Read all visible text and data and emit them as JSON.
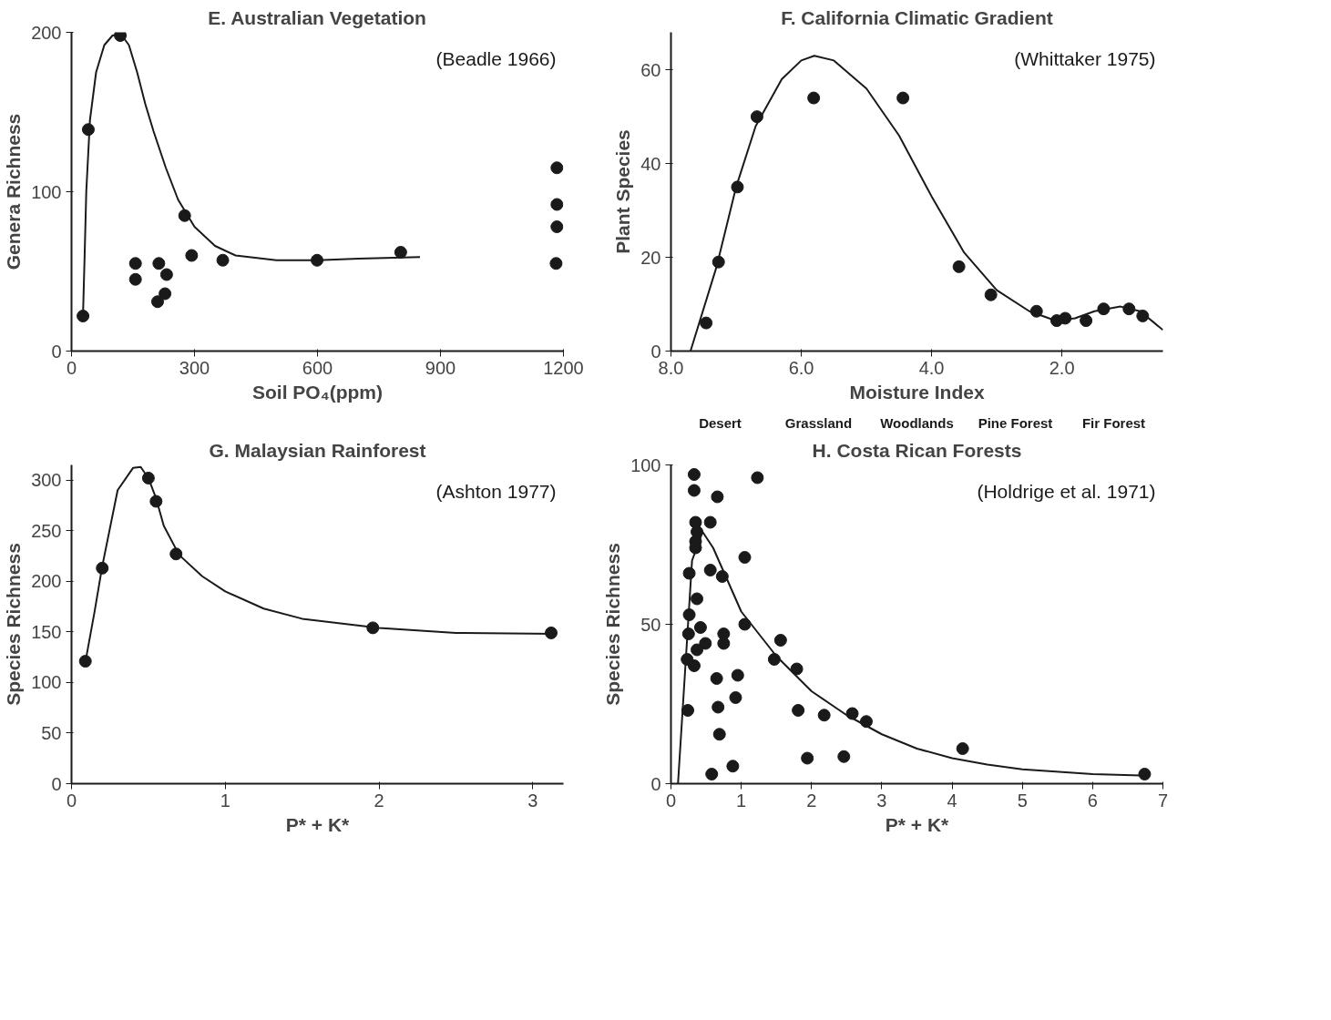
{
  "chart_data": [
    {
      "type": "scatter",
      "title": "E. Australian Vegetation",
      "xlabel": "Soil PO₄(ppm)",
      "ylabel": "Genera Richness",
      "annotations": [
        "(Beadle 1966)"
      ],
      "xlim": [
        0,
        1200
      ],
      "ylim": [
        0,
        200
      ],
      "xticks": [
        0,
        300,
        600,
        900,
        1200
      ],
      "yticks": [
        0,
        100,
        200
      ],
      "series": [
        {
          "marker": "circle",
          "color": "#1a1a1a",
          "x": [
            28,
            41,
            119,
            156,
            156,
            213,
            232,
            210,
            228,
            276,
            293,
            369,
            599,
            803,
            1184,
            1184,
            1184,
            1182
          ],
          "values": [
            22,
            139,
            198,
            55,
            45,
            55,
            48,
            31,
            36,
            85,
            60,
            57,
            57,
            62,
            115,
            92,
            78,
            55
          ]
        },
        {
          "type": "line",
          "color": "#1a1a1a",
          "x": [
            28,
            32,
            36,
            45,
            60,
            80,
            100,
            120,
            140,
            160,
            180,
            200,
            230,
            260,
            300,
            350,
            400,
            500,
            600,
            700,
            850
          ],
          "values": [
            22,
            60,
            100,
            145,
            175,
            192,
            198,
            199,
            192,
            175,
            155,
            138,
            115,
            95,
            78,
            66,
            60,
            57,
            57,
            58,
            59
          ]
        }
      ]
    },
    {
      "type": "scatter",
      "title": "F. California Climatic Gradient",
      "xlabel": "Moisture Index",
      "ylabel": "Plant Species",
      "annotations": [
        "(Whittaker 1975)",
        "Desert",
        "Grassland",
        "Woodlands",
        "Pine Forest",
        "Fir Forest"
      ],
      "xlim": [
        8.0,
        0.45
      ],
      "ylim": [
        0,
        68
      ],
      "xticks": [
        {
          "value": 8,
          "label": "8.0"
        },
        {
          "value": 6,
          "label": "6.0"
        },
        {
          "value": 4,
          "label": "4.0"
        },
        {
          "value": 2,
          "label": "2.0"
        }
      ],
      "yticks": [
        0,
        20,
        40,
        60
      ],
      "series": [
        {
          "marker": "circle",
          "color": "#1a1a1a",
          "x": [
            7.46,
            7.27,
            6.98,
            6.68,
            5.81,
            4.44,
            3.58,
            3.09,
            2.39,
            2.08,
            1.95,
            1.63,
            1.36,
            0.97,
            0.76
          ],
          "values": [
            6,
            19,
            35,
            50,
            54,
            54,
            18,
            12,
            8.5,
            6.5,
            7,
            6.5,
            9,
            9,
            7.5
          ]
        },
        {
          "type": "line",
          "color": "#1a1a1a",
          "x": [
            7.7,
            7.3,
            7.0,
            6.7,
            6.3,
            6.0,
            5.8,
            5.5,
            5.0,
            4.5,
            4.0,
            3.5,
            3.0,
            2.5,
            2.1,
            1.8,
            1.5,
            1.1,
            0.8,
            0.45
          ],
          "values": [
            0,
            18,
            35,
            48,
            58,
            62,
            63,
            62,
            56,
            46,
            33,
            21,
            13,
            8.5,
            6.5,
            7,
            8.5,
            9.5,
            8.5,
            4.5
          ]
        }
      ]
    },
    {
      "type": "scatter",
      "title": "G. Malaysian Rainforest",
      "xlabel": "P* + K*",
      "ylabel": "Species Richness",
      "annotations": [
        "(Ashton 1977)"
      ],
      "xlim": [
        0,
        3.2
      ],
      "ylim": [
        0,
        315
      ],
      "xticks": [
        0,
        1,
        2,
        3
      ],
      "yticks": [
        0,
        50,
        100,
        150,
        200,
        250,
        300
      ],
      "series": [
        {
          "marker": "circle",
          "color": "#1a1a1a",
          "x": [
            0.09,
            0.2,
            0.5,
            0.55,
            0.68,
            1.96,
            3.12
          ],
          "values": [
            121,
            213,
            302,
            279,
            227,
            154,
            149
          ]
        },
        {
          "type": "line",
          "color": "#1a1a1a",
          "x": [
            0.09,
            0.15,
            0.2,
            0.3,
            0.4,
            0.45,
            0.5,
            0.55,
            0.6,
            0.7,
            0.85,
            1.0,
            1.25,
            1.5,
            2.0,
            2.5,
            3.15
          ],
          "values": [
            120,
            170,
            215,
            290,
            312,
            313,
            302,
            282,
            255,
            226,
            205,
            190,
            173,
            163,
            154,
            149,
            148
          ]
        }
      ]
    },
    {
      "type": "scatter",
      "title": "H. Costa Rican Forests",
      "xlabel": "P* + K*",
      "ylabel": "Species Richness",
      "annotations": [
        "(Holdrige et al. 1971)"
      ],
      "xlim": [
        0,
        7
      ],
      "ylim": [
        0,
        100
      ],
      "xticks": [
        0,
        1,
        2,
        3,
        4,
        5,
        6,
        7
      ],
      "yticks": [
        0,
        50,
        100
      ],
      "series": [
        {
          "marker": "circle",
          "color": "#1a1a1a",
          "x": [
            0.33,
            0.33,
            0.66,
            0.35,
            0.56,
            0.37,
            0.35,
            0.35,
            0.26,
            0.56,
            0.73,
            1.05,
            1.23,
            0.37,
            0.26,
            0.42,
            0.25,
            0.75,
            0.75,
            0.49,
            0.37,
            0.23,
            0.33,
            1.05,
            1.56,
            1.47,
            1.79,
            0.65,
            0.95,
            0.92,
            0.67,
            0.24,
            1.81,
            2.18,
            2.58,
            2.78,
            0.69,
            1.94,
            2.46,
            4.15,
            0.88,
            0.58,
            6.74
          ],
          "values": [
            97,
            92,
            90,
            82,
            82,
            79,
            76,
            74,
            66,
            67,
            65,
            71,
            96,
            58,
            53,
            49,
            47,
            47,
            44,
            44,
            42,
            39,
            37,
            50,
            45,
            39,
            36,
            33,
            34,
            27,
            24,
            23,
            23,
            21.5,
            22,
            19.5,
            15.5,
            8,
            8.5,
            11,
            5.5,
            3,
            3
          ]
        },
        {
          "type": "line",
          "color": "#1a1a1a",
          "x": [
            0.1,
            0.2,
            0.3,
            0.45,
            0.6,
            0.8,
            1.0,
            1.5,
            2.0,
            2.5,
            3.0,
            3.5,
            4.0,
            4.5,
            5.0,
            6.0,
            6.8
          ],
          "values": [
            0,
            35,
            70,
            79,
            74,
            64,
            54,
            40,
            29,
            21.5,
            15.5,
            11,
            8,
            6,
            4.5,
            3,
            2.5
          ]
        }
      ]
    }
  ]
}
